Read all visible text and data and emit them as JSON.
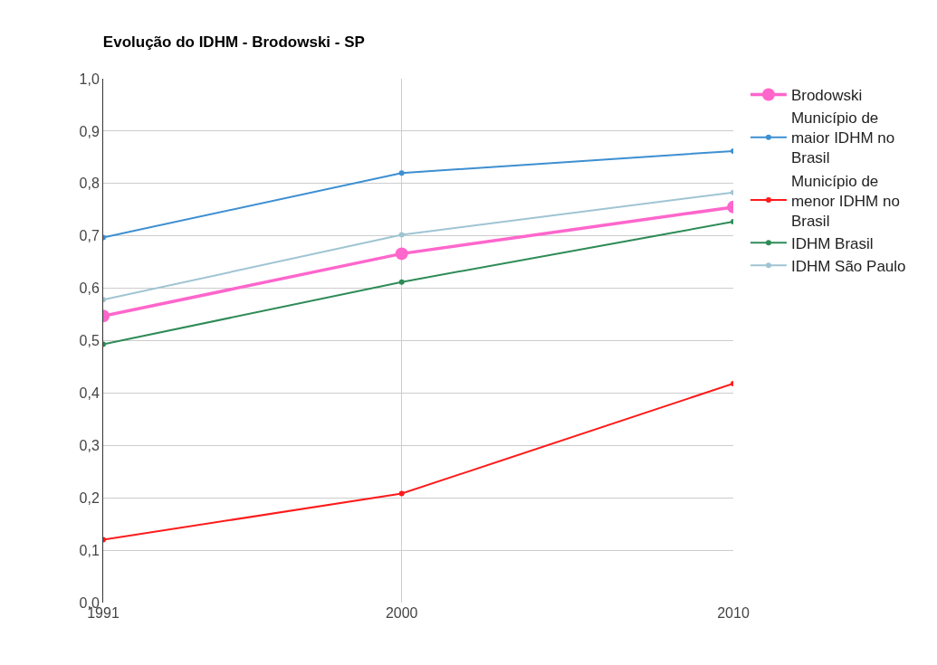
{
  "chart_data": {
    "type": "line",
    "title": "Evolução do IDHM - Brodowski - SP",
    "x": [
      1991,
      2000,
      2010
    ],
    "xlim": [
      1991,
      2010
    ],
    "xticks": [
      1991,
      2000,
      2010
    ],
    "ylim": [
      0,
      1
    ],
    "yticks": [
      {
        "value": 0,
        "label": "0,0"
      },
      {
        "value": 0.1,
        "label": "0,1"
      },
      {
        "value": 0.2,
        "label": "0,2"
      },
      {
        "value": 0.3,
        "label": "0,3"
      },
      {
        "value": 0.4,
        "label": "0,4"
      },
      {
        "value": 0.5,
        "label": "0,5"
      },
      {
        "value": 0.6,
        "label": "0,6"
      },
      {
        "value": 0.7,
        "label": "0,7"
      },
      {
        "value": 0.8,
        "label": "0,8"
      },
      {
        "value": 0.9,
        "label": "0,9"
      },
      {
        "value": 1,
        "label": "1,0"
      }
    ],
    "grid": true,
    "legend": "top right",
    "marker": "circle",
    "line_style": "solid",
    "series": [
      {
        "name": "Brodowski",
        "color": "#ff66cc",
        "values": [
          0.547,
          0.666,
          0.755
        ]
      },
      {
        "name": "Município de maior IDHM no Brasil",
        "color": "#3d8fd1",
        "values": [
          0.697,
          0.82,
          0.862
        ]
      },
      {
        "name": "Município de menor IDHM no Brasil",
        "color": "#ff1a1a",
        "values": [
          0.12,
          0.208,
          0.418
        ]
      },
      {
        "name": "IDHM Brasil",
        "color": "#2e8b57",
        "values": [
          0.493,
          0.612,
          0.727
        ]
      },
      {
        "name": "IDHM São Paulo",
        "color": "#9fc4d3",
        "values": [
          0.578,
          0.702,
          0.783
        ]
      }
    ]
  }
}
